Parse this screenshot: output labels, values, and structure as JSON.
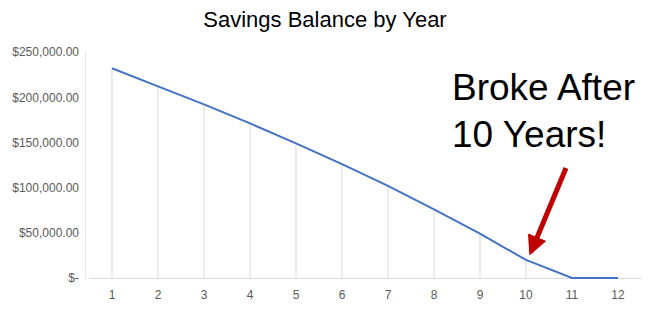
{
  "chart_data": {
    "type": "line",
    "title": "Savings Balance by Year",
    "categories": [
      1,
      2,
      3,
      4,
      5,
      6,
      7,
      8,
      9,
      10,
      11,
      12
    ],
    "values": [
      232000,
      212000,
      192000,
      171000,
      149000,
      126000,
      102000,
      76000,
      49000,
      20000,
      0,
      0
    ],
    "color": "#4472c4",
    "ylim": [
      0,
      250000
    ],
    "yticks": [
      {
        "value": 0,
        "label": "$-"
      },
      {
        "value": 50000,
        "label": "$50,000.00"
      },
      {
        "value": 100000,
        "label": "$100,000.00"
      },
      {
        "value": 150000,
        "label": "$150,000.00"
      },
      {
        "value": 200000,
        "label": "$200,000.00"
      },
      {
        "value": 250000,
        "label": "$250,000.00"
      }
    ],
    "grid": false,
    "annotation": [
      "Broke After",
      "10 Years!"
    ]
  }
}
